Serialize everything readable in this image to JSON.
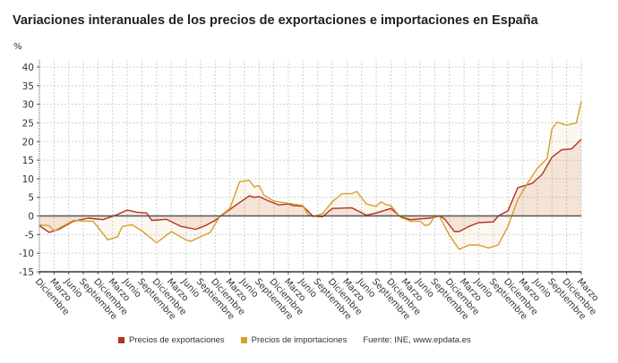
{
  "chart_data": {
    "type": "line",
    "title": "Variaciones interanuales de los precios de exportaciones e importaciones en España",
    "ylabel": "%",
    "ylim": [
      -15,
      40
    ],
    "yticks": [
      -15,
      -10,
      -5,
      0,
      5,
      10,
      15,
      20,
      25,
      30,
      35,
      40
    ],
    "xlim": [
      "2012-12",
      "2022-03"
    ],
    "xtick_labels": [
      "Diciembre",
      "Marzo",
      "Junio",
      "Septiembre",
      "Diciembre",
      "Marzo",
      "Junio",
      "Septiembre",
      "Diciembre",
      "Marzo",
      "Junio",
      "Septiembre",
      "Diciembre",
      "Marzo",
      "Junio",
      "Septiembre",
      "Diciembre",
      "Marzo",
      "Junio",
      "Septiembre",
      "Diciembre",
      "Marzo",
      "Junio",
      "Septiembre",
      "Diciembre",
      "Marzo",
      "Junio",
      "Septiembre",
      "Diciembre",
      "Marzo",
      "Junio",
      "Septiembre",
      "Diciembre",
      "Marzo",
      "Junio",
      "Septiembre",
      "Diciembre",
      "Marzo"
    ],
    "grid": true,
    "legend_position": "bottom",
    "source": "Fuente: INE, www.epdata.es",
    "series": [
      {
        "name": "Precios de exportaciones",
        "color": "#b5321f",
        "x": [
          "2012-12",
          "2013-02",
          "2013-04",
          "2013-07",
          "2013-10",
          "2014-01",
          "2014-04",
          "2014-06",
          "2014-08",
          "2014-10",
          "2014-11",
          "2015-02",
          "2015-05",
          "2015-08",
          "2015-10",
          "2015-12",
          "2016-02",
          "2016-05",
          "2016-07",
          "2016-08",
          "2016-09",
          "2016-11",
          "2017-01",
          "2017-03",
          "2017-04",
          "2017-06",
          "2017-08",
          "2017-10",
          "2017-12",
          "2018-04",
          "2018-07",
          "2018-09",
          "2018-12",
          "2019-02",
          "2019-04",
          "2019-08",
          "2019-10",
          "2019-11",
          "2020-01",
          "2020-02",
          "2020-04",
          "2020-06",
          "2020-09",
          "2020-10",
          "2020-12",
          "2021-02",
          "2021-05",
          "2021-07",
          "2021-09",
          "2021-11",
          "2022-01",
          "2022-03"
        ],
        "y": [
          -2.6,
          -4.4,
          -3.6,
          -1.4,
          -0.6,
          -1.0,
          0.4,
          1.6,
          1.0,
          0.8,
          -1.2,
          -0.9,
          -2.8,
          -3.6,
          -2.6,
          -1.2,
          0.8,
          3.6,
          5.4,
          5.0,
          5.2,
          4.0,
          3.0,
          3.2,
          2.8,
          2.6,
          0.0,
          -0.2,
          2.0,
          2.2,
          0.2,
          0.8,
          2.0,
          -0.2,
          -1.0,
          -0.6,
          0.0,
          -0.8,
          -4.2,
          -4.2,
          -2.8,
          -1.8,
          -1.6,
          0.0,
          1.4,
          7.6,
          8.8,
          11.2,
          15.8,
          17.8,
          18.0,
          20.6
        ]
      },
      {
        "name": "Precios de importaciones",
        "color": "#d4a02a",
        "x": [
          "2012-12",
          "2013-02",
          "2013-03",
          "2013-07",
          "2013-10",
          "2013-11",
          "2014-02",
          "2014-04",
          "2014-05",
          "2014-07",
          "2014-09",
          "2014-12",
          "2015-01",
          "2015-03",
          "2015-06",
          "2015-07",
          "2015-11",
          "2016-01",
          "2016-03",
          "2016-05",
          "2016-07",
          "2016-08",
          "2016-09",
          "2016-10",
          "2016-12",
          "2017-02",
          "2017-05",
          "2017-06",
          "2017-07",
          "2017-08",
          "2017-10",
          "2017-12",
          "2018-02",
          "2018-04",
          "2018-05",
          "2018-07",
          "2018-09",
          "2018-10",
          "2018-11",
          "2018-12",
          "2019-02",
          "2019-04",
          "2019-06",
          "2019-07",
          "2019-08",
          "2019-09",
          "2019-10",
          "2019-12",
          "2020-02",
          "2020-04",
          "2020-06",
          "2020-08",
          "2020-10",
          "2020-12",
          "2021-02",
          "2021-04",
          "2021-06",
          "2021-08",
          "2021-09",
          "2021-10",
          "2021-12",
          "2022-02",
          "2022-03"
        ],
        "y": [
          -2.4,
          -2.6,
          -4.0,
          -1.2,
          -1.4,
          -1.4,
          -6.4,
          -5.6,
          -2.8,
          -2.4,
          -4.0,
          -7.2,
          -6.2,
          -4.2,
          -6.4,
          -6.8,
          -4.4,
          0.0,
          2.0,
          9.2,
          9.6,
          7.8,
          8.2,
          5.6,
          4.0,
          3.6,
          3.0,
          2.8,
          0.4,
          -0.2,
          0.6,
          3.8,
          6.0,
          6.0,
          6.6,
          3.2,
          2.6,
          3.8,
          3.0,
          2.8,
          -0.4,
          -1.4,
          -1.4,
          -2.6,
          -2.2,
          0.0,
          -0.2,
          -5.2,
          -9.0,
          -7.8,
          -7.8,
          -8.6,
          -7.8,
          -2.8,
          4.4,
          8.8,
          12.8,
          15.4,
          23.4,
          25.2,
          24.4,
          25.0,
          30.8
        ]
      }
    ]
  }
}
